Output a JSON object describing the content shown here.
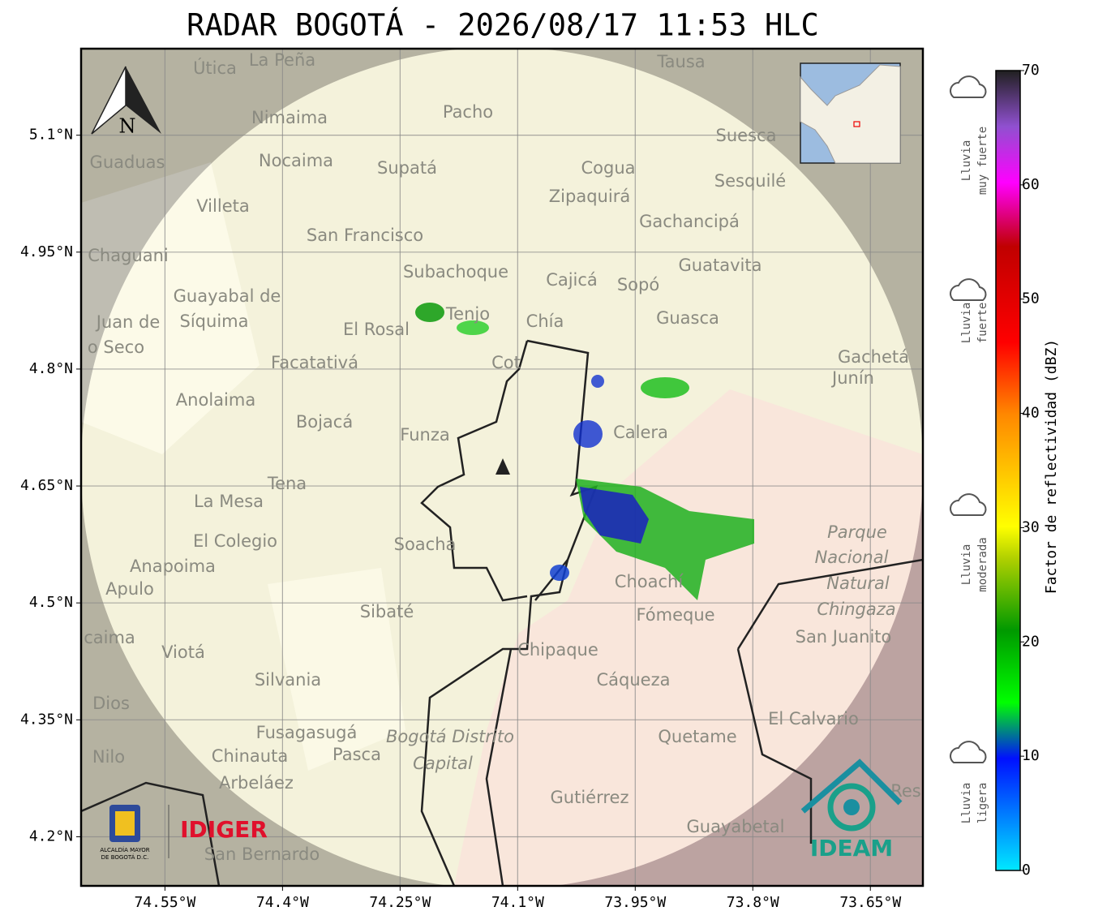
{
  "title": "RADAR BOGOTÁ - 2026/08/17 11:53 HLC",
  "map": {
    "xlim": [
      -74.657,
      -73.583
    ],
    "ylim": [
      4.137,
      5.211
    ],
    "xticks": [
      {
        "value": -74.55,
        "label": "74.55°W"
      },
      {
        "value": -74.4,
        "label": "74.4°W"
      },
      {
        "value": -74.25,
        "label": "74.25°W"
      },
      {
        "value": -74.1,
        "label": "74.1°W"
      },
      {
        "value": -73.95,
        "label": "73.95°W"
      },
      {
        "value": -73.8,
        "label": "73.8°W"
      },
      {
        "value": -73.65,
        "label": "73.65°W"
      }
    ],
    "yticks": [
      {
        "value": 5.1,
        "label": "5.1°N"
      },
      {
        "value": 4.95,
        "label": "4.95°N"
      },
      {
        "value": 4.8,
        "label": "4.8°N"
      },
      {
        "value": 4.65,
        "label": "4.65°N"
      },
      {
        "value": 4.5,
        "label": "4.5°N"
      },
      {
        "value": 4.35,
        "label": "4.35°N"
      },
      {
        "value": 4.2,
        "label": "4.2°N"
      }
    ],
    "grid": true,
    "north": "N",
    "places": [
      "Útica",
      "La Peña",
      "Tausa",
      "Pacho",
      "Nimaima",
      "Suesca",
      "Guaduas",
      "Nocaima",
      "Supatá",
      "Cogua",
      "Sesquilé",
      "Zipaquirá",
      "Villeta",
      "Gachancipá",
      "San Francisco",
      "Chaguani",
      "Guatavita",
      "Subachoque",
      "Cajicá",
      "Sopó",
      "Guayabal de",
      "Síquima",
      "Juan de",
      "Tenjo",
      "El Rosal",
      "Chía",
      "Guasca",
      "o Seco",
      "Facatativá",
      "Cot",
      "Gachetá",
      "Junín",
      "Anolaima",
      "Bojacá",
      "Funza",
      "Calera",
      "Tena",
      "La Mesa",
      "Parque",
      "Nacional",
      "Natural",
      "Chingaza",
      "El Colegio",
      "Soacha",
      "Anapoima",
      "Apulo",
      "Choachí",
      "Fómeque",
      "Sibaté",
      "San Juanito",
      "caima",
      "Chipaque",
      "Viotá",
      "Silvania",
      "Cáqueza",
      "Dios",
      "El Calvario",
      "Fusagasugá",
      "Bogotá Distrito",
      "Quetame",
      "Nilo",
      "Chinauta",
      "Pasca",
      "Capital",
      "Arbeláez",
      "Gutiérrez",
      "Guayabetal",
      "San Bernardo",
      "Res"
    ]
  },
  "colorbar": {
    "label": "Factor de reflectividad (dBZ)",
    "lim": [
      0,
      70
    ],
    "ticks": [
      0,
      10,
      20,
      30,
      40,
      50,
      60,
      70
    ]
  },
  "rain_classes": [
    [
      "Lluvia",
      "muy fuerte"
    ],
    [
      "Lluvia",
      "fuerte"
    ],
    [
      "Lluvia",
      "moderada"
    ],
    [
      "Lluvia",
      "ligera"
    ]
  ],
  "logos": {
    "alcaldia": [
      "ALCALDÍA MAYOR",
      "DE BOGOTÁ D.C."
    ],
    "idiger": "IDIGER",
    "ideam": "IDEAM"
  }
}
